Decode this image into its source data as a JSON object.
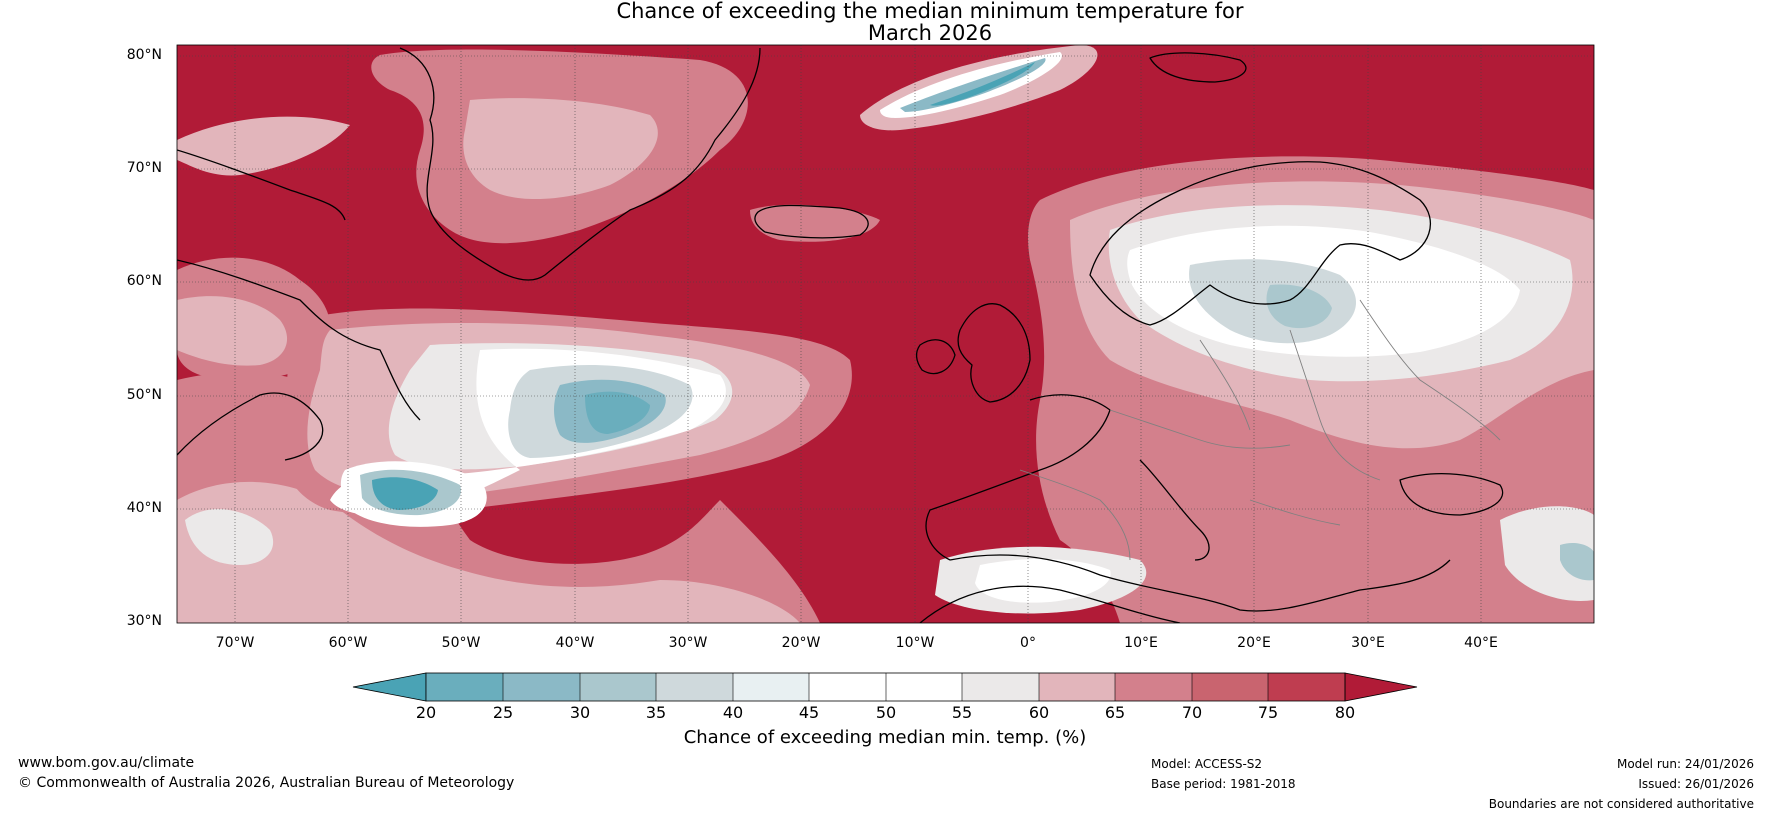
{
  "title": {
    "line1": "Chance of exceeding the median minimum temperature for",
    "line2": "March 2026"
  },
  "map": {
    "region": "North Atlantic and Europe",
    "lat_labels": [
      "80°N",
      "70°N",
      "60°N",
      "50°N",
      "40°N",
      "30°N"
    ],
    "lon_labels": [
      "70°W",
      "60°W",
      "50°W",
      "40°W",
      "30°W",
      "20°W",
      "10°W",
      "0°",
      "10°E",
      "20°E",
      "30°E",
      "40°E"
    ],
    "colors": {
      "c20": "#4aa3b5",
      "c25": "#6aaebd",
      "c30": "#8bb9c6",
      "c35": "#aac7cd",
      "c40": "#cfd9dc",
      "c45": "#e8f0f2",
      "c50": "#ffffff",
      "c55": "#ffffff",
      "c60": "#ebe9e9",
      "c65": "#e2b5bb",
      "c70": "#d3808c",
      "c75": "#c9646f",
      "c80": "#bf3d50",
      "c80plus": "#b11b37",
      "coast": "#000000",
      "border": "#808080",
      "grid": "#444444"
    }
  },
  "colorbar": {
    "ticks": [
      "20",
      "25",
      "30",
      "35",
      "40",
      "45",
      "50",
      "55",
      "60",
      "65",
      "70",
      "75",
      "80"
    ],
    "label": "Chance of exceeding median min. temp. (%)"
  },
  "footer": {
    "website": "www.bom.gov.au/climate",
    "copyright": "© Commonwealth of Australia 2026, Australian Bureau of Meteorology",
    "model": "Model: ACCESS-S2",
    "base_period": "Base period: 1981-2018",
    "model_run": "Model run: 24/01/2026",
    "issued": "Issued: 26/01/2026",
    "disclaimer": "Boundaries are not considered authoritative"
  }
}
